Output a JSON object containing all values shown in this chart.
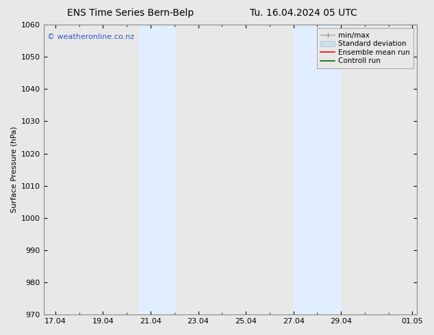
{
  "title_left": "ENS Time Series Bern-Belp",
  "title_right": "Tu. 16.04.2024 05 UTC",
  "ylabel": "Surface Pressure (hPa)",
  "ylim": [
    970,
    1060
  ],
  "yticks": [
    970,
    980,
    990,
    1000,
    1010,
    1020,
    1030,
    1040,
    1050,
    1060
  ],
  "xlim_start": 16.5,
  "xlim_end": 32.2,
  "xtick_labels": [
    "17.04",
    "19.04",
    "21.04",
    "23.04",
    "25.04",
    "27.04",
    "29.04",
    "01.05"
  ],
  "xtick_positions": [
    17.0,
    19.0,
    21.0,
    23.0,
    25.0,
    27.0,
    29.0,
    32.0
  ],
  "shaded_regions": [
    {
      "x_start": 20.5,
      "x_end": 22.0,
      "color": "#e0eeff"
    },
    {
      "x_start": 27.0,
      "x_end": 29.0,
      "color": "#e0eeff"
    }
  ],
  "watermark_text": "© weatheronline.co.nz",
  "watermark_color": "#3355cc",
  "background_color": "#e8e8e8",
  "plot_bg_color": "#e8e8e8",
  "spine_color": "#888888",
  "tick_color": "#000000",
  "font_color": "#000000",
  "title_fontsize": 10,
  "axis_fontsize": 8,
  "tick_fontsize": 8,
  "watermark_fontsize": 8
}
